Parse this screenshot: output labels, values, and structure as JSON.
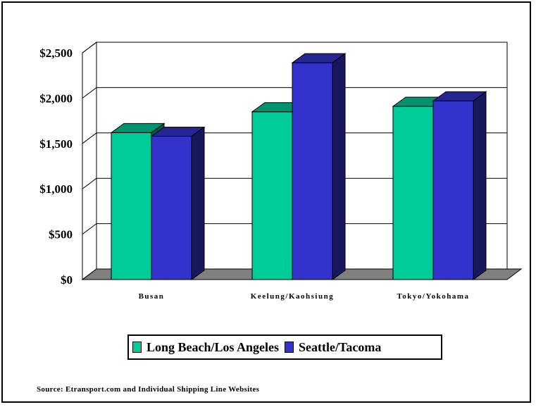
{
  "chart_data": {
    "type": "bar",
    "style": "3d-clustered-column",
    "title": "",
    "xlabel": "",
    "ylabel": "",
    "categories": [
      "Busan",
      "Keelung/Kaohsiung",
      "Tokyo/Yokohama"
    ],
    "series": [
      {
        "name": "Long Beach/Los Angeles",
        "values": [
          1620,
          1850,
          1910
        ],
        "color": "#00cc99"
      },
      {
        "name": "Seattle/Tacoma",
        "values": [
          1580,
          2390,
          1970
        ],
        "color": "#3333cc"
      }
    ],
    "ylim": [
      0,
      2500
    ],
    "yticks": [
      0,
      500,
      1000,
      1500,
      2000,
      2500
    ],
    "ytick_labels": [
      "$0",
      "$500",
      "$1,000",
      "$1,500",
      "$2,000",
      "$2,500"
    ],
    "grid": true,
    "legend_placement": "bottom",
    "source_note": "Source: Etransport.com and Individual Shipping Line Websites"
  },
  "colors": {
    "floor": "#808080",
    "gridline": "#000000",
    "background": "#ffffff"
  }
}
